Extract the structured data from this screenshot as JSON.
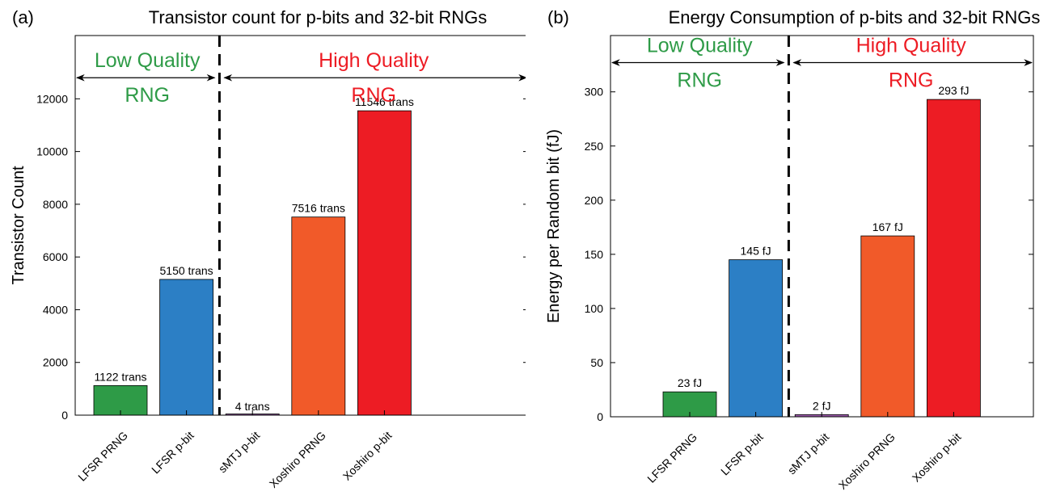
{
  "chart_data": [
    {
      "type": "bar",
      "panel_label": "(a)",
      "title": "Transistor count for p-bits and 32-bit RNGs",
      "xlabel": "",
      "ylabel": "Transistor Count",
      "categories": [
        "LFSR PRNG",
        "LFSR p-bit",
        "sMTJ p-bit",
        "Xoshiro PRNG",
        "Xoshiro p-bit"
      ],
      "values": [
        1122,
        5150,
        4,
        7516,
        11546
      ],
      "bar_labels": [
        "1122 trans",
        "5150 trans",
        "4 trans",
        "7516 trans",
        "11546 trans"
      ],
      "bar_colors": [
        "#2e9b47",
        "#2c7fc5",
        "#9b5bab",
        "#f15a29",
        "#ed1c24"
      ],
      "ylim": [
        0,
        14400
      ],
      "yticks": [
        0,
        2000,
        4000,
        6000,
        8000,
        10000,
        12000
      ],
      "ytick_labels": [
        "0",
        "2000",
        "4000",
        "6000",
        "8000",
        "10000",
        "12000"
      ],
      "grid": false,
      "separator_after_index": 1,
      "low_region": {
        "line1": "Low Quality",
        "line2": "RNG",
        "color": "#2e9b47",
        "arrow_y": 12800
      },
      "high_region": {
        "line1": "High Quality",
        "line2": "RNG",
        "color": "#ed1c24",
        "arrow_y": 12800
      }
    },
    {
      "type": "bar",
      "panel_label": "(b)",
      "title": "Energy Consumption of p-bits and 32-bit RNGs",
      "xlabel": "",
      "ylabel": "Energy per Random bit (fJ)",
      "categories": [
        "LFSR PRNG",
        "LFSR p-bit",
        "sMTJ p-bit",
        "Xoshiro PRNG",
        "Xoshiro p-bit"
      ],
      "values": [
        23,
        145,
        2,
        167,
        293
      ],
      "bar_labels": [
        "23 fJ",
        "145 fJ",
        "2 fJ",
        "167 fJ",
        "293 fJ"
      ],
      "bar_colors": [
        "#2e9b47",
        "#2c7fc5",
        "#9b5bab",
        "#f15a29",
        "#ed1c24"
      ],
      "ylim": [
        0,
        352
      ],
      "yticks": [
        0,
        50,
        100,
        150,
        200,
        250,
        300
      ],
      "ytick_labels": [
        "0",
        "50",
        "100",
        "150",
        "200",
        "250",
        "300"
      ],
      "grid": false,
      "separator_after_index": 1,
      "low_region": {
        "line1": "Low Quality",
        "line2": "RNG",
        "color": "#2e9b47",
        "arrow_y": 327
      },
      "high_region": {
        "line1": "High Quality",
        "line2": "RNG",
        "color": "#ed1c24",
        "arrow_y": 327
      }
    }
  ]
}
